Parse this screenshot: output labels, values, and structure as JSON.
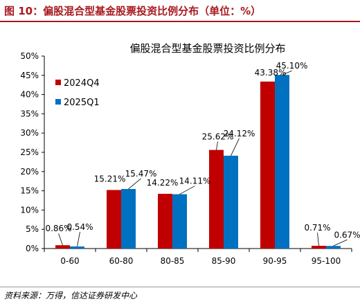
{
  "figure": {
    "title": "图 10：偏股混合型基金股票投资比例分布（单位：%）",
    "source": "资料来源：万得，信达证券研发中心"
  },
  "colors": {
    "accent": "#a8191f",
    "series_1": "#c00000",
    "series_2": "#0070c0"
  },
  "chart_data": {
    "type": "bar",
    "title": "偏股混合型基金股票投资比例分布",
    "xlabel": "",
    "ylabel": "",
    "categories": [
      "0-60",
      "60-80",
      "80-85",
      "85-90",
      "90-95",
      "95-100"
    ],
    "series": [
      {
        "name": "2024Q4",
        "values": [
          0.86,
          15.21,
          14.22,
          25.62,
          43.38,
          0.71
        ],
        "labels": [
          "0.86%",
          "15.21%",
          "14.22%",
          "25.62%",
          "43.38%",
          "0.71%"
        ]
      },
      {
        "name": "2025Q1",
        "values": [
          0.54,
          15.47,
          14.11,
          24.12,
          45.1,
          0.67
        ],
        "labels": [
          "0.54%",
          "15.47%",
          "14.11%",
          "24.12%",
          "45.10%",
          "0.67%"
        ]
      }
    ],
    "ylim": [
      0,
      50
    ],
    "yticks": [
      "0%",
      "5%",
      "10%",
      "15%",
      "20%",
      "25%",
      "30%",
      "35%",
      "40%",
      "45%",
      "50%"
    ],
    "grid": false,
    "legend_position": "top-left"
  }
}
